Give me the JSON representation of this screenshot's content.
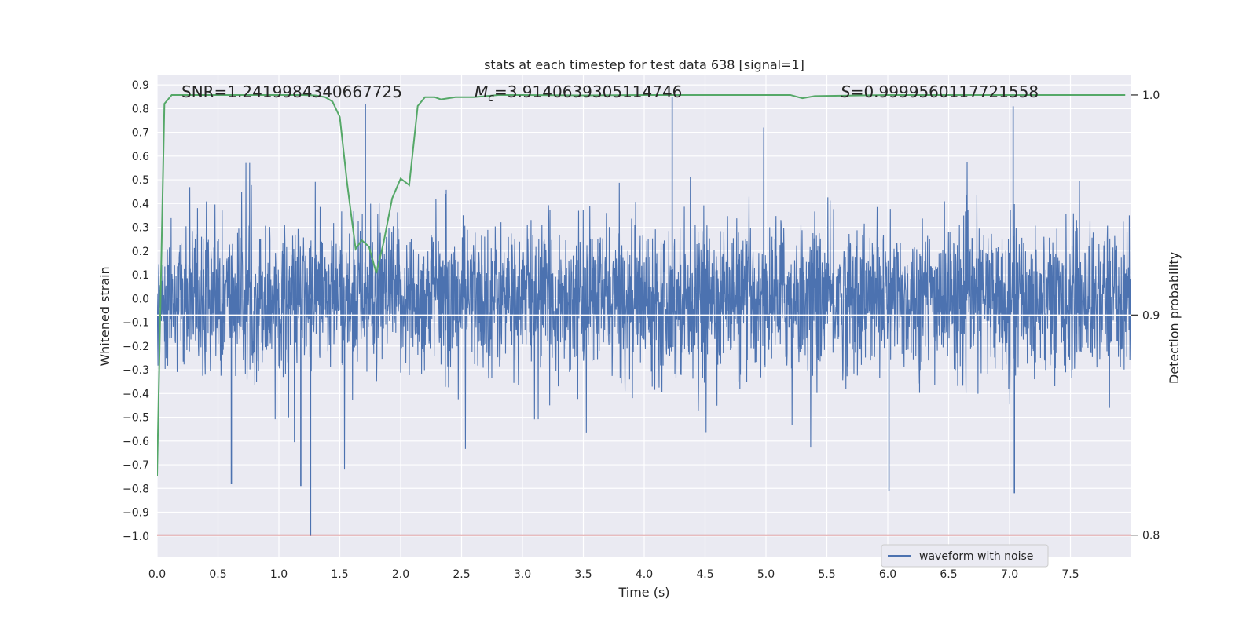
{
  "chart_data": {
    "type": "line",
    "title": "stats at each timestep for test data 638 [signal=1]",
    "xlabel": "Time (s)",
    "ylabel": "Whitened strain",
    "y2label": "Detection probability",
    "xlim": [
      0.0,
      8.0
    ],
    "ylim": [
      -1.09,
      0.94
    ],
    "y2lim": [
      0.7899,
      1.0089
    ],
    "grid": true,
    "xticks": [
      "0.0",
      "0.5",
      "1.0",
      "1.5",
      "2.0",
      "2.5",
      "3.0",
      "3.5",
      "4.0",
      "4.5",
      "5.0",
      "5.5",
      "6.0",
      "6.5",
      "7.0",
      "7.5"
    ],
    "yticks": [
      "−1.0",
      "−0.9",
      "−0.8",
      "−0.7",
      "−0.6",
      "−0.5",
      "−0.4",
      "−0.3",
      "−0.2",
      "−0.1",
      "0.0",
      "0.1",
      "0.2",
      "0.3",
      "0.4",
      "0.5",
      "0.6",
      "0.7",
      "0.8",
      "0.9"
    ],
    "y2ticks": [
      "0.8",
      "0.9",
      "1.0"
    ],
    "annotations": {
      "snr": "SNR=1.2419984340667725",
      "mc_symbol": "M",
      "mc_subscript": "c",
      "mc_value": "=3.9140639305114746",
      "s_symbol": "S",
      "s_value": "=0.9999560117721558"
    },
    "reference_lines": {
      "white_y2": 0.9,
      "red_y2": 0.8
    },
    "series": [
      {
        "name": "waveform with noise",
        "axis": "left",
        "color": "#4c72b0",
        "description": "whitened strain noise, ~8 s, envelope approx ±0.45 with spikes",
        "spikes": [
          {
            "x": 1.26,
            "y": -1.0
          },
          {
            "x": 1.71,
            "y": 0.82
          },
          {
            "x": 4.23,
            "y": 0.85
          },
          {
            "x": 7.03,
            "y": 0.81
          },
          {
            "x": 7.04,
            "y": -0.82
          },
          {
            "x": 6.01,
            "y": -0.81
          },
          {
            "x": 1.18,
            "y": -0.79
          },
          {
            "x": 0.61,
            "y": -0.78
          }
        ]
      },
      {
        "name": "",
        "axis": "right",
        "color": "#55a868",
        "x": [
          0.0,
          0.06,
          0.12,
          0.2,
          0.3,
          0.5,
          0.8,
          1.0,
          1.2,
          1.3,
          1.38,
          1.44,
          1.5,
          1.56,
          1.63,
          1.68,
          1.74,
          1.8,
          1.86,
          1.93,
          2.0,
          2.07,
          2.14,
          2.2,
          2.28,
          2.33,
          2.45,
          2.6,
          2.8,
          3.0,
          3.5,
          4.0,
          4.5,
          5.0,
          5.2,
          5.3,
          5.4,
          6.0,
          7.0,
          7.95
        ],
        "y": [
          0.827,
          0.996,
          1.0,
          1.0,
          1.0,
          1.0,
          1.0,
          1.0,
          1.0,
          0.9998,
          0.999,
          0.997,
          0.99,
          0.96,
          0.93,
          0.934,
          0.931,
          0.919,
          0.933,
          0.953,
          0.962,
          0.959,
          0.995,
          0.999,
          0.999,
          0.998,
          0.999,
          0.999,
          1.0,
          1.0,
          0.9998,
          1.0,
          1.0,
          1.0,
          1.0,
          0.9985,
          0.9995,
          1.0,
          1.0,
          1.0
        ]
      }
    ],
    "legend": {
      "placement": "lower-right",
      "entries": [
        "waveform with noise"
      ]
    }
  }
}
